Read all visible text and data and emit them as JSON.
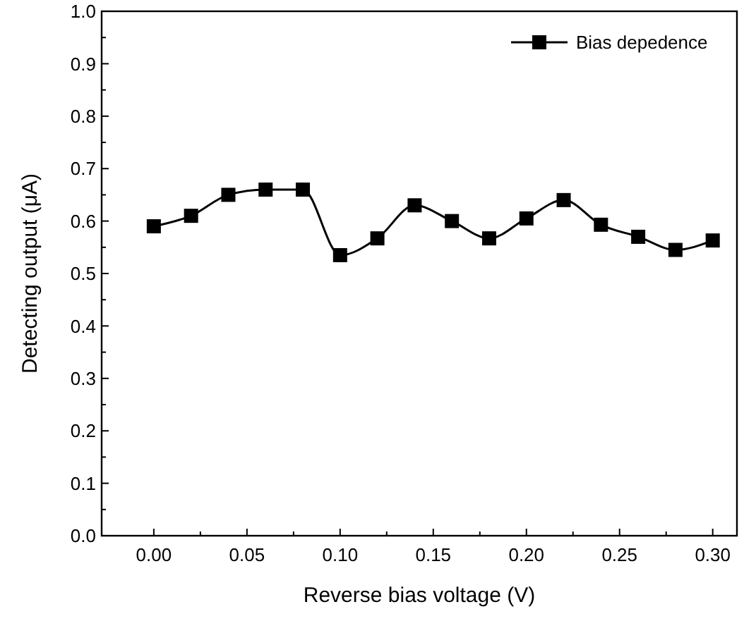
{
  "chart_data": {
    "type": "line",
    "xlabel": "Reverse bias voltage (V)",
    "ylabel": "Detecting output (μA)",
    "x": [
      0,
      0.02,
      0.04,
      0.06,
      0.08,
      0.1,
      0.12,
      0.14,
      0.16,
      0.18,
      0.2,
      0.22,
      0.24,
      0.26,
      0.28,
      0.3
    ],
    "series": [
      {
        "name": "Bias depedence",
        "color": "#000000",
        "values": [
          0.59,
          0.61,
          0.65,
          0.66,
          0.66,
          0.535,
          0.567,
          0.63,
          0.6,
          0.567,
          0.605,
          0.64,
          0.593,
          0.57,
          0.545,
          0.563
        ]
      }
    ],
    "xlim": [
      -0.028,
      0.313
    ],
    "xticks": [
      {
        "value": 0,
        "label": "0.00"
      },
      {
        "value": 0.05,
        "label": "0.05"
      },
      {
        "value": 0.1,
        "label": "0.10"
      },
      {
        "value": 0.15,
        "label": "0.15"
      },
      {
        "value": 0.2,
        "label": "0.20"
      },
      {
        "value": 0.25,
        "label": "0.25"
      },
      {
        "value": 0.3,
        "label": "0.30"
      }
    ],
    "ylim": [
      0,
      1
    ],
    "yticks": [
      {
        "value": 0,
        "label": "0.0"
      },
      {
        "value": 0.1,
        "label": "0.1"
      },
      {
        "value": 0.2,
        "label": "0.2"
      },
      {
        "value": 0.3,
        "label": "0.3"
      },
      {
        "value": 0.4,
        "label": "0.4"
      },
      {
        "value": 0.5,
        "label": "0.5"
      },
      {
        "value": 0.6,
        "label": "0.6"
      },
      {
        "value": 0.7,
        "label": "0.7"
      },
      {
        "value": 0.8,
        "label": "0.8"
      },
      {
        "value": 0.9,
        "label": "0.9"
      },
      {
        "value": 1,
        "label": "1.0"
      }
    ],
    "legend": "top right",
    "marker": "square",
    "line_style": "solid",
    "grid": false
  }
}
